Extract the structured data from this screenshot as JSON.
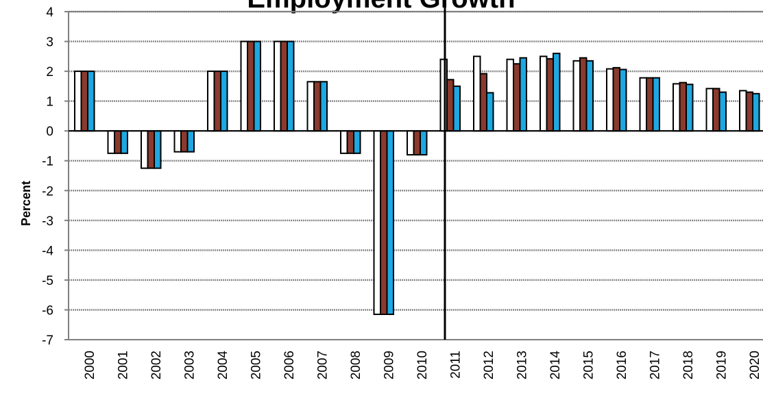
{
  "chart_data": {
    "type": "bar",
    "title": "Employment Growth",
    "ylabel": "Percent",
    "xlabel": "",
    "ylim": [
      -7,
      4
    ],
    "yticks": [
      4,
      3,
      2,
      1,
      0,
      -1,
      -2,
      -3,
      -4,
      -5,
      -6,
      -7
    ],
    "grid": true,
    "legend": "none",
    "divider_after_category": "2010",
    "categories": [
      "2000",
      "2001",
      "2002",
      "2003",
      "2004",
      "2005",
      "2006",
      "2007",
      "2008",
      "2009",
      "2010",
      "2011",
      "2012",
      "2013",
      "2014",
      "2015",
      "2016",
      "2017",
      "2018",
      "2019",
      "2020"
    ],
    "series": [
      {
        "color": "#ffffff",
        "values": [
          2.0,
          -0.75,
          -1.25,
          -0.7,
          2.0,
          3.0,
          3.0,
          1.65,
          -0.75,
          -6.15,
          -0.8,
          2.4,
          2.5,
          2.4,
          2.5,
          2.35,
          2.08,
          1.78,
          1.58,
          1.42,
          1.35
        ]
      },
      {
        "color": "#8b3a2e",
        "values": [
          2.0,
          -0.75,
          -1.25,
          -0.7,
          2.0,
          3.0,
          3.0,
          1.65,
          -0.75,
          -6.15,
          -0.8,
          1.72,
          1.92,
          2.25,
          2.42,
          2.45,
          2.12,
          1.78,
          1.62,
          1.42,
          1.3
        ]
      },
      {
        "color": "#1ea7e0",
        "values": [
          2.0,
          -0.75,
          -1.25,
          -0.7,
          2.0,
          3.0,
          3.0,
          1.65,
          -0.75,
          -6.15,
          -0.8,
          1.5,
          1.28,
          2.45,
          2.6,
          2.35,
          2.06,
          1.78,
          1.56,
          1.3,
          1.25
        ]
      }
    ]
  }
}
